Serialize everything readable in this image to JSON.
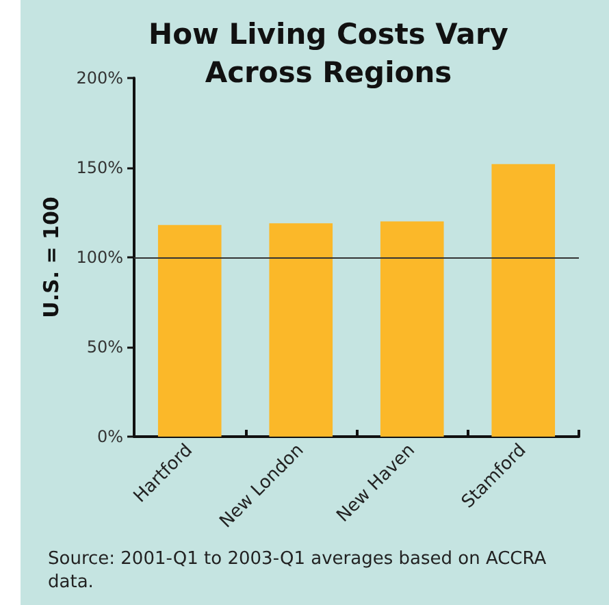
{
  "chart_data": {
    "type": "bar",
    "title": "How Living Costs Vary\nAcross Regions",
    "ylabel": "U.S. = 100",
    "categories": [
      "Hartford",
      "New London",
      "New Haven",
      "Stamford"
    ],
    "values": [
      118,
      119,
      120,
      152
    ],
    "color": "#fbb829",
    "ylim": [
      0,
      200
    ],
    "yticks": [
      {
        "value": 0,
        "label": "0%"
      },
      {
        "value": 50,
        "label": "50%"
      },
      {
        "value": 100,
        "label": "100%"
      },
      {
        "value": 150,
        "label": "150%"
      },
      {
        "value": 200,
        "label": "200%"
      }
    ],
    "grid": false,
    "ref_lines": [
      {
        "axis": "y",
        "value": 100,
        "color": "#333333"
      }
    ],
    "annotations": [
      "Source: 2001-Q1 to 2003-Q1 averages based on ACCRA data."
    ]
  }
}
